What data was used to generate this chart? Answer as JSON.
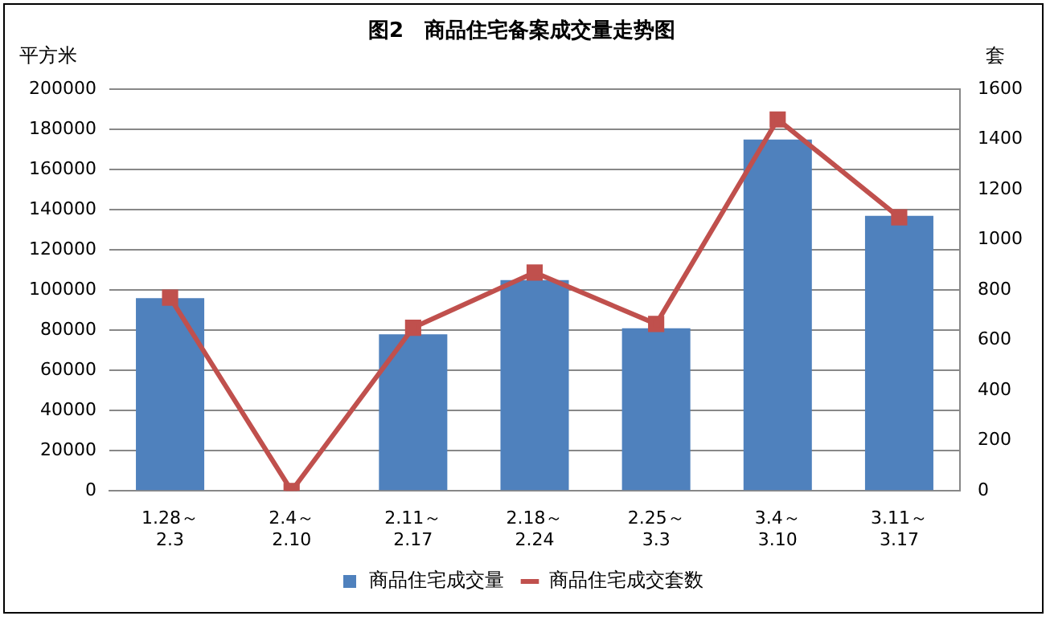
{
  "chart_data": {
    "type": "bar",
    "title": "图2　商品住宅备案成交量走势图",
    "ylabel": "平方米",
    "y2label": "套",
    "categories": [
      "1.28～\n2.3",
      "2.4～\n2.10",
      "2.11～\n2.17",
      "2.18～\n2.24",
      "2.25～\n3.3",
      "3.4～\n3.10",
      "3.11～\n3.17"
    ],
    "series": [
      {
        "name": "商品住宅成交量",
        "color": "#4f81bd",
        "values": [
          96000,
          0,
          78000,
          105000,
          81000,
          175000,
          137000
        ]
      },
      {
        "name": "商品住宅成交套数",
        "type": "line",
        "axis": "y2",
        "color": "#c0504d",
        "marker": "square",
        "values": [
          770,
          0,
          650,
          870,
          665,
          1480,
          1090
        ]
      }
    ],
    "ylim": [
      0,
      200000
    ],
    "yticks": [
      0,
      20000,
      40000,
      60000,
      80000,
      100000,
      120000,
      140000,
      160000,
      180000,
      200000
    ],
    "y2lim": [
      0,
      1600
    ],
    "y2ticks": [
      0,
      200,
      400,
      600,
      800,
      1000,
      1200,
      1400,
      1600
    ],
    "grid": "y",
    "legend": "bottom"
  }
}
